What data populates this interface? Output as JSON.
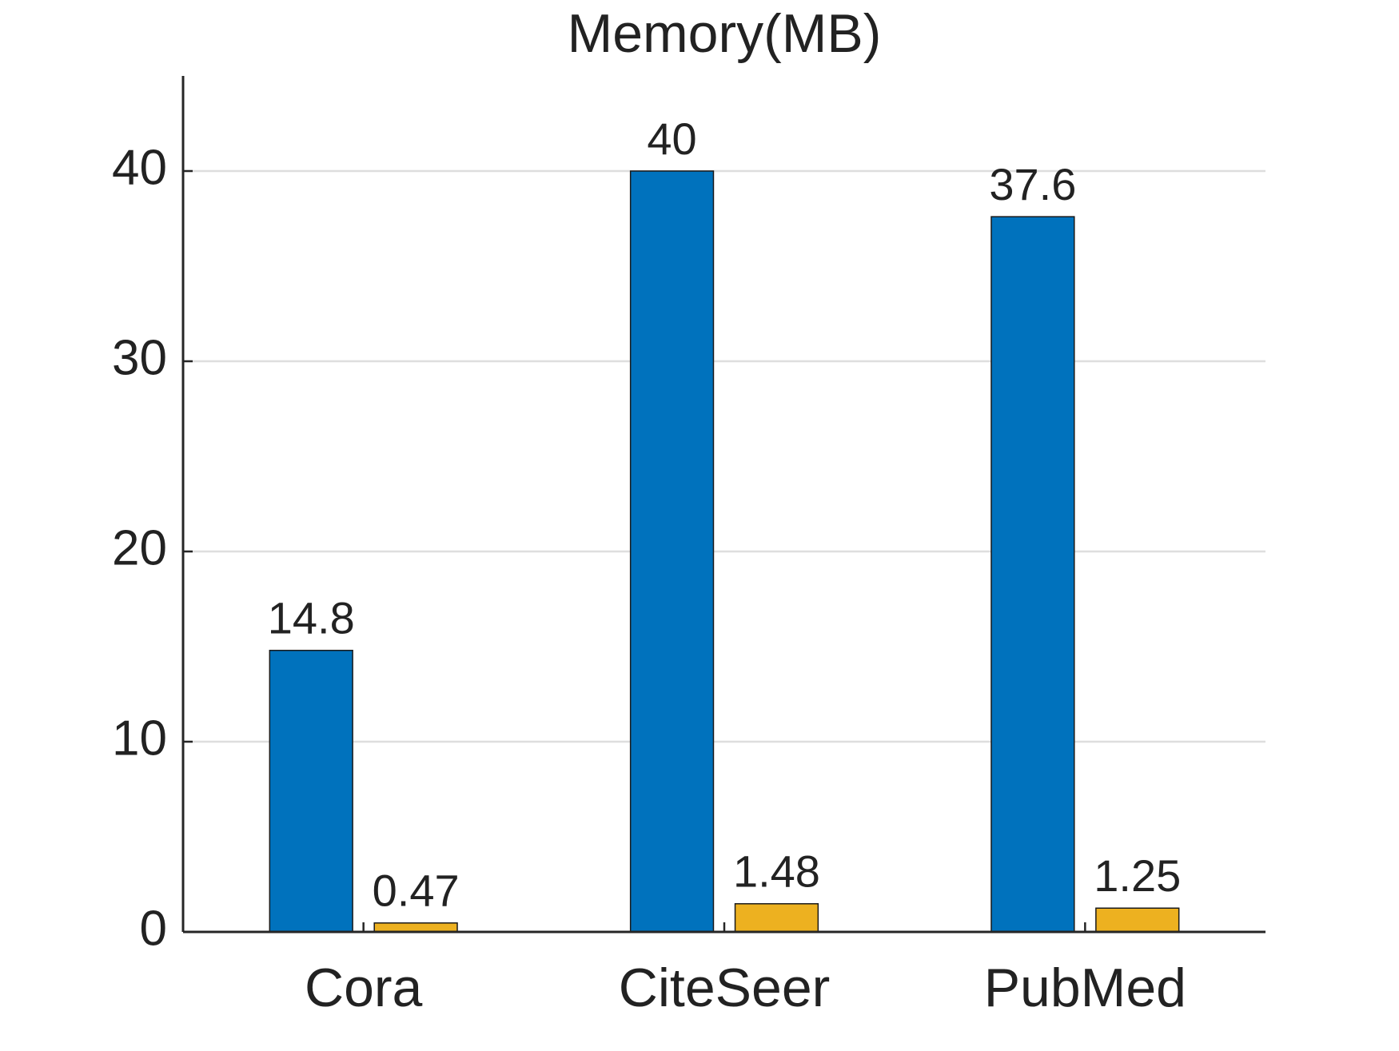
{
  "chart_data": {
    "type": "bar",
    "title": "Memory(MB)",
    "categories": [
      "Cora",
      "CiteSeer",
      "PubMed"
    ],
    "series": [
      {
        "color": "#0072bd",
        "values": [
          14.8,
          40,
          37.6
        ]
      },
      {
        "color": "#edb120",
        "values": [
          0.47,
          1.48,
          1.25
        ]
      }
    ],
    "ylim": [
      0,
      45
    ],
    "yticks": [
      0,
      10,
      20,
      30,
      40
    ],
    "grid": true
  }
}
